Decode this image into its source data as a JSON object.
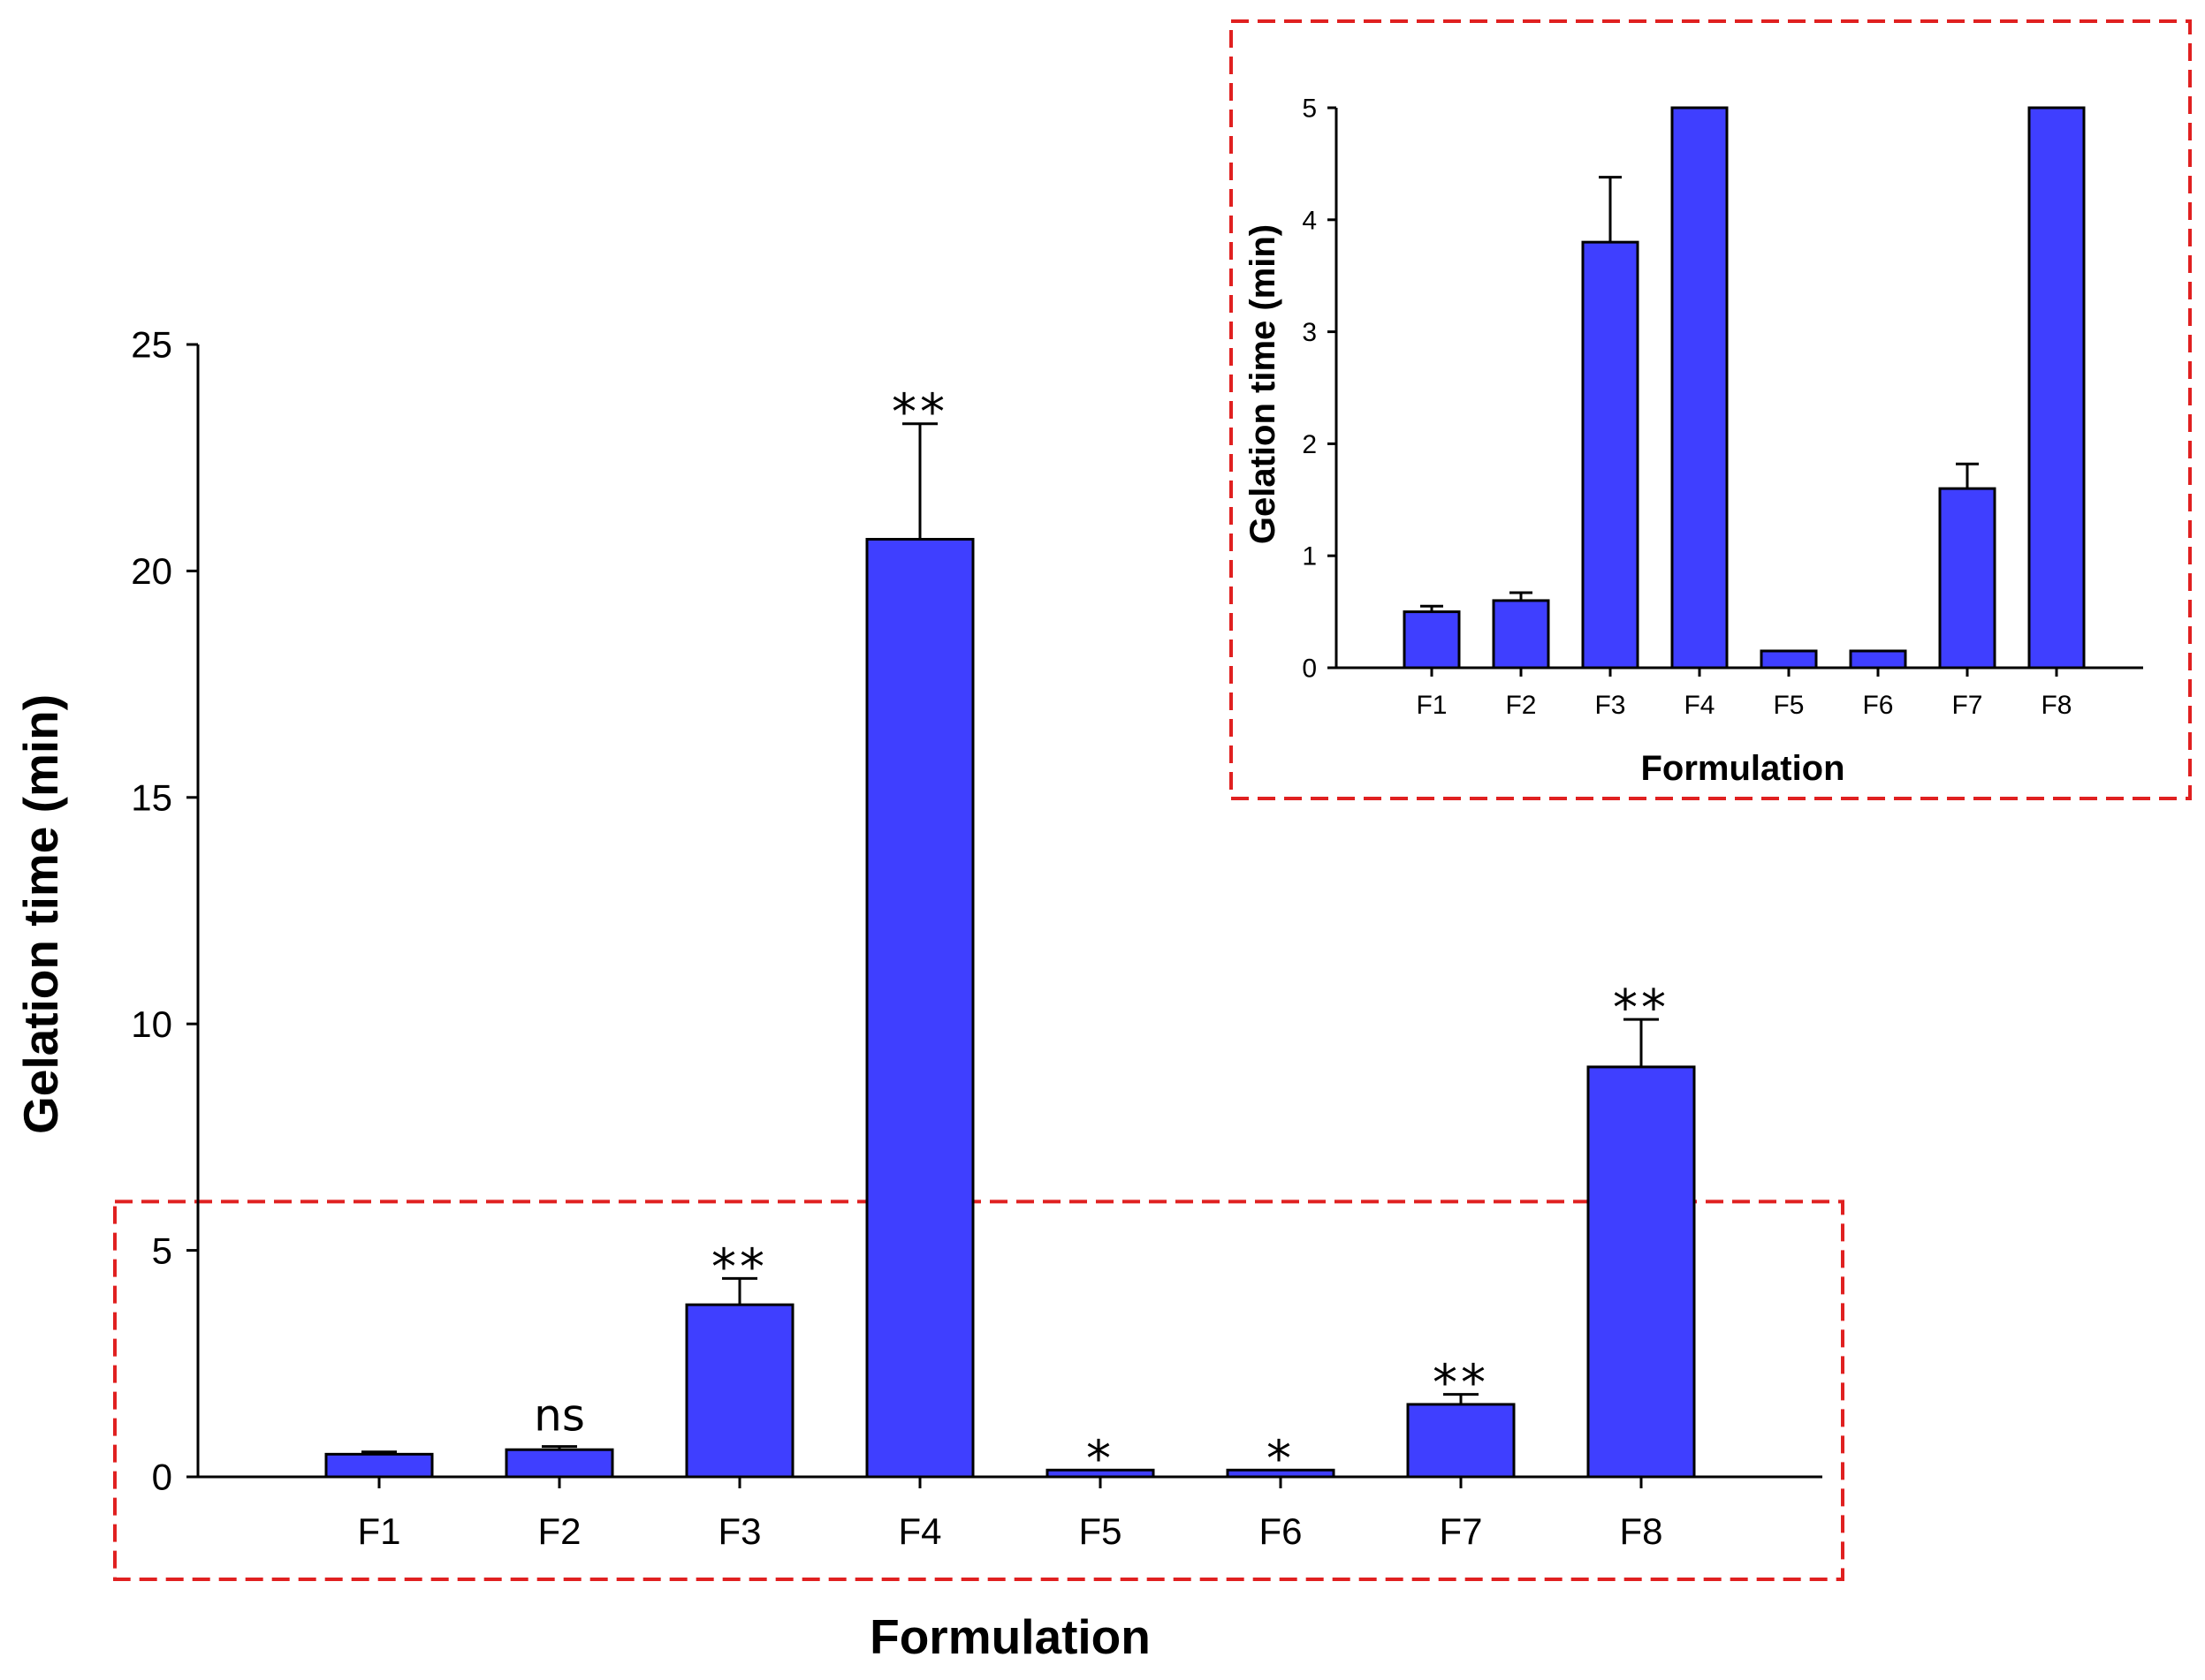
{
  "chart_data": [
    {
      "type": "bar",
      "role": "main",
      "title": "",
      "xlabel": "Formulation",
      "ylabel": "Gelation time (min)",
      "ylim": [
        0,
        25
      ],
      "yticks": [
        0,
        5,
        10,
        15,
        20,
        25
      ],
      "ytick_labels": [
        "0",
        "5",
        "10",
        "15",
        "20",
        "25"
      ],
      "categories": [
        "F1",
        "F2",
        "F3",
        "F4",
        "F5",
        "F6",
        "F7",
        "F8"
      ],
      "values": [
        0.5,
        0.6,
        3.8,
        20.7,
        0.15,
        0.15,
        1.6,
        9.05
      ],
      "errors": [
        0.05,
        0.07,
        0.58,
        2.55,
        0.0,
        0.0,
        0.22,
        1.05
      ],
      "annotations": [
        "",
        "ns",
        "**",
        "**",
        "*",
        "*",
        "**",
        "**"
      ],
      "bar_color": "#3f3fff",
      "highlight_box": {
        "y_range": [
          0,
          6
        ],
        "color": "#e02020",
        "style": "dashed"
      }
    },
    {
      "type": "bar",
      "role": "inset",
      "title": "",
      "xlabel": "Formulation",
      "ylabel": "Gelation time (min)",
      "ylim": [
        0,
        5
      ],
      "yticks": [
        0,
        1,
        2,
        3,
        4,
        5
      ],
      "ytick_labels": [
        "0",
        "1",
        "2",
        "3",
        "4",
        "5"
      ],
      "categories": [
        "F1",
        "F2",
        "F3",
        "F4",
        "F5",
        "F6",
        "F7",
        "F8"
      ],
      "values": [
        0.5,
        0.6,
        3.8,
        5.0,
        0.15,
        0.15,
        1.6,
        5.0
      ],
      "errors": [
        0.05,
        0.07,
        0.58,
        0.0,
        0.0,
        0.0,
        0.22,
        0.0
      ],
      "bar_color": "#3f3fff",
      "frame": {
        "color": "#e02020",
        "style": "dashed"
      }
    }
  ]
}
